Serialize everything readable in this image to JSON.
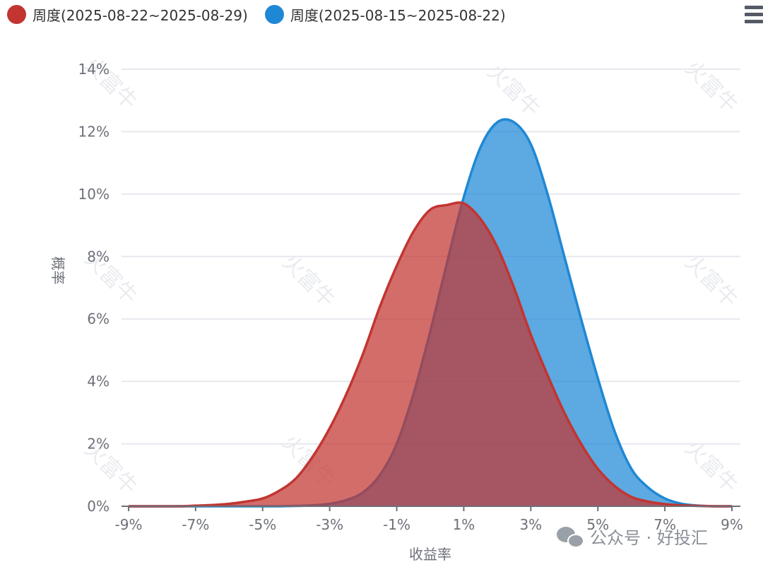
{
  "legend": {
    "items": [
      {
        "label": "周度(2025-08-22~2025-08-29)",
        "color": "#c23531"
      },
      {
        "label": "周度(2025-08-15~2025-08-22)",
        "color": "#1f88d5"
      }
    ]
  },
  "watermark": {
    "text": "火富牛",
    "footer": "公众号 · 好投汇"
  },
  "menu_icon": "hamburger-menu-icon",
  "chart_data": {
    "type": "area",
    "xlabel": "收益率",
    "ylabel": "概率",
    "x": [
      -9,
      -8.5,
      -8,
      -7.5,
      -7,
      -6.5,
      -6,
      -5.5,
      -5,
      -4.5,
      -4,
      -3.5,
      -3,
      -2.5,
      -2,
      -1.5,
      -1,
      -0.5,
      0,
      0.5,
      1,
      1.5,
      2,
      2.5,
      3,
      3.5,
      4,
      4.5,
      5,
      5.5,
      6,
      6.5,
      7,
      7.5,
      8,
      8.5,
      9
    ],
    "x_ticks": [
      "-9%",
      "-7%",
      "-5%",
      "-3%",
      "-1%",
      "1%",
      "3%",
      "5%",
      "7%",
      "9%"
    ],
    "x_tick_values": [
      -9,
      -7,
      -5,
      -3,
      -1,
      1,
      3,
      5,
      7,
      9
    ],
    "y_ticks": [
      "0%",
      "2%",
      "4%",
      "6%",
      "8%",
      "10%",
      "12%",
      "14%"
    ],
    "y_tick_values": [
      0,
      2,
      4,
      6,
      8,
      10,
      12,
      14
    ],
    "xlim": [
      -9,
      9
    ],
    "ylim": [
      0,
      14
    ],
    "grid": true,
    "legend_position": "top-left",
    "series": [
      {
        "name": "周度(2025-08-22~2025-08-29)",
        "color": "#c23531",
        "values": [
          0,
          0,
          0,
          0,
          0.02,
          0.04,
          0.08,
          0.15,
          0.25,
          0.5,
          0.9,
          1.6,
          2.5,
          3.6,
          4.9,
          6.4,
          7.7,
          8.8,
          9.5,
          9.65,
          9.7,
          9.2,
          8.3,
          7.0,
          5.5,
          4.2,
          3.0,
          2.0,
          1.2,
          0.65,
          0.3,
          0.15,
          0.07,
          0.03,
          0.01,
          0,
          0
        ]
      },
      {
        "name": "周度(2025-08-15~2025-08-22)",
        "color": "#1f88d5",
        "values": [
          0,
          0,
          0,
          0,
          0,
          0,
          0,
          0,
          0,
          0,
          0.01,
          0.03,
          0.08,
          0.2,
          0.45,
          1.0,
          2.0,
          3.6,
          5.6,
          7.8,
          9.9,
          11.5,
          12.3,
          12.3,
          11.6,
          10.0,
          8.0,
          6.0,
          4.1,
          2.4,
          1.2,
          0.6,
          0.25,
          0.08,
          0.02,
          0,
          0
        ]
      }
    ]
  }
}
